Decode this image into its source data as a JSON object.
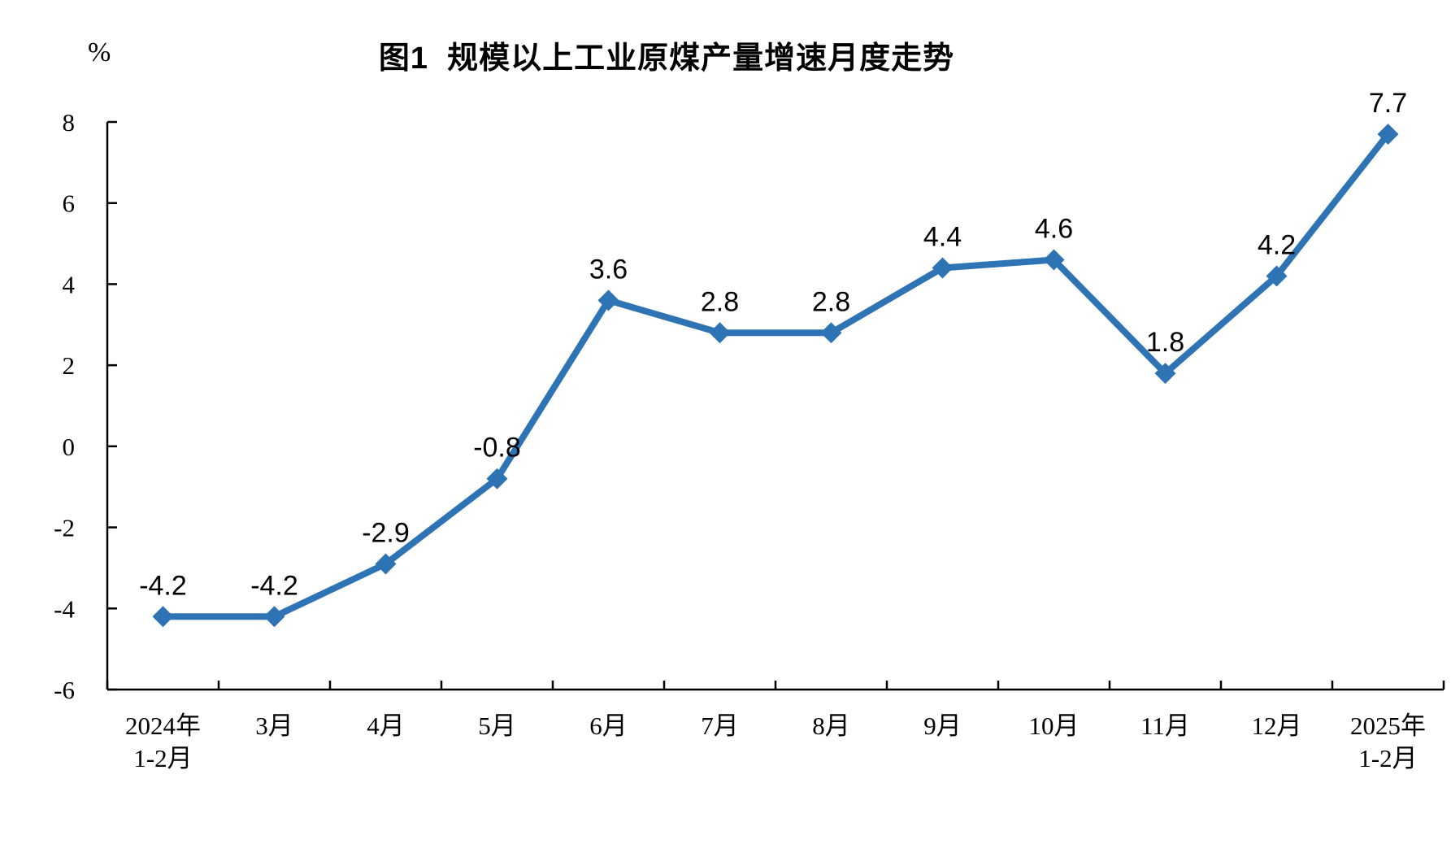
{
  "chart_data": {
    "type": "line",
    "title": "图1  规模以上工业原煤产量增速月度走势",
    "ylabel": "%",
    "xlabel": "",
    "categories": [
      "2024年\n1-2月",
      "3月",
      "4月",
      "5月",
      "6月",
      "7月",
      "8月",
      "9月",
      "10月",
      "11月",
      "12月",
      "2025年\n1-2月"
    ],
    "values": [
      -4.2,
      -4.2,
      -2.9,
      -0.8,
      3.6,
      2.8,
      2.8,
      4.4,
      4.6,
      1.8,
      4.2,
      7.7
    ],
    "data_labels": [
      "-4.2",
      "-4.2",
      "-2.9",
      "-0.8",
      "3.6",
      "2.8",
      "2.8",
      "4.4",
      "4.6",
      "1.8",
      "4.2",
      "7.7"
    ],
    "series_name": "规模以上工业原煤产量增速",
    "ylim": [
      -6,
      8
    ],
    "yticks": [
      8,
      6,
      4,
      2,
      0,
      -2,
      -4,
      -6
    ],
    "grid": "off",
    "legend": "none",
    "marker": "diamond",
    "line_color": "#2E74B5",
    "axis_color": "#000000",
    "label_color": "#000000",
    "background_color": "#FFFFFF"
  }
}
